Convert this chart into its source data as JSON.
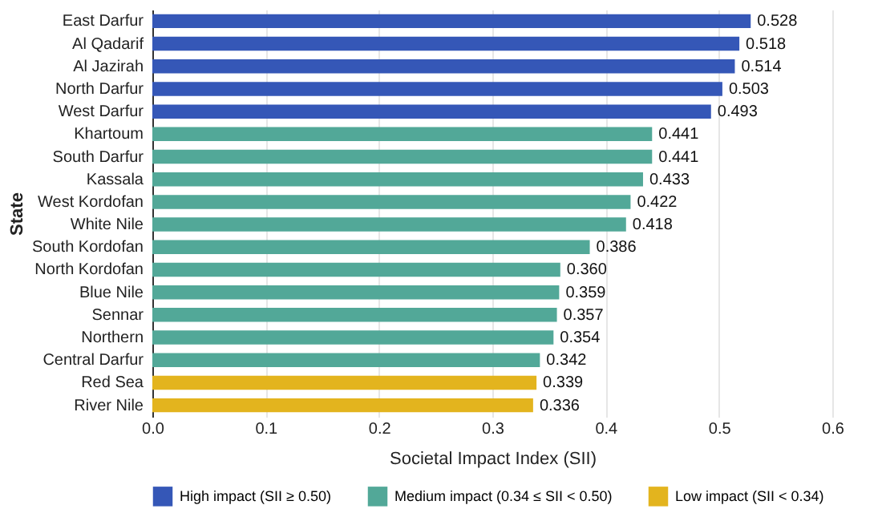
{
  "chart_data": {
    "type": "bar",
    "orientation": "horizontal",
    "xlabel": "Societal Impact Index (SII)",
    "ylabel": "State",
    "categories": [
      "East Darfur",
      "Al Qadarif",
      "Al Jazirah",
      "North Darfur",
      "West Darfur",
      "Khartoum",
      "South Darfur",
      "Kassala",
      "West Kordofan",
      "White Nile",
      "South Kordofan",
      "North Kordofan",
      "Blue Nile",
      "Sennar",
      "Northern",
      "Central Darfur",
      "Red Sea",
      "River Nile"
    ],
    "series": [
      {
        "name": "High impact (SII ≥ 0.50)",
        "color": "#3557b7",
        "values": [
          0.528,
          0.518,
          0.514,
          0.503,
          0.493,
          null,
          null,
          null,
          null,
          null,
          null,
          null,
          null,
          null,
          null,
          null,
          null,
          null
        ],
        "value_labels": [
          "0.528",
          "0.518",
          "0.514",
          "0.503",
          "0.493",
          null,
          null,
          null,
          null,
          null,
          null,
          null,
          null,
          null,
          null,
          null,
          null,
          null
        ]
      },
      {
        "name": "Medium impact (0.34 ≤ SII < 0.50)",
        "color": "#52a898",
        "values": [
          null,
          null,
          null,
          null,
          null,
          0.441,
          0.441,
          0.433,
          0.422,
          0.418,
          0.386,
          0.36,
          0.359,
          0.357,
          0.354,
          0.342,
          null,
          null
        ],
        "value_labels": [
          null,
          null,
          null,
          null,
          null,
          "0.441",
          "0.441",
          "0.433",
          "0.422",
          "0.418",
          "0.386",
          "0.360",
          "0.359",
          "0.357",
          "0.354",
          "0.342",
          null,
          null
        ]
      },
      {
        "name": "Low impact (SII < 0.34)",
        "color": "#e3b41e",
        "values": [
          null,
          null,
          null,
          null,
          null,
          null,
          null,
          null,
          null,
          null,
          null,
          null,
          null,
          null,
          null,
          null,
          0.339,
          0.336
        ],
        "value_labels": [
          null,
          null,
          null,
          null,
          null,
          null,
          null,
          null,
          null,
          null,
          null,
          null,
          null,
          null,
          null,
          null,
          "0.339",
          "0.336"
        ]
      }
    ],
    "xlim": [
      0,
      0.6
    ],
    "xticks": [
      {
        "value": 0,
        "label": "0.0"
      },
      0.1,
      0.2,
      0.3,
      0.4,
      0.5,
      0.6
    ],
    "grid": "x",
    "legend": "bottom"
  }
}
